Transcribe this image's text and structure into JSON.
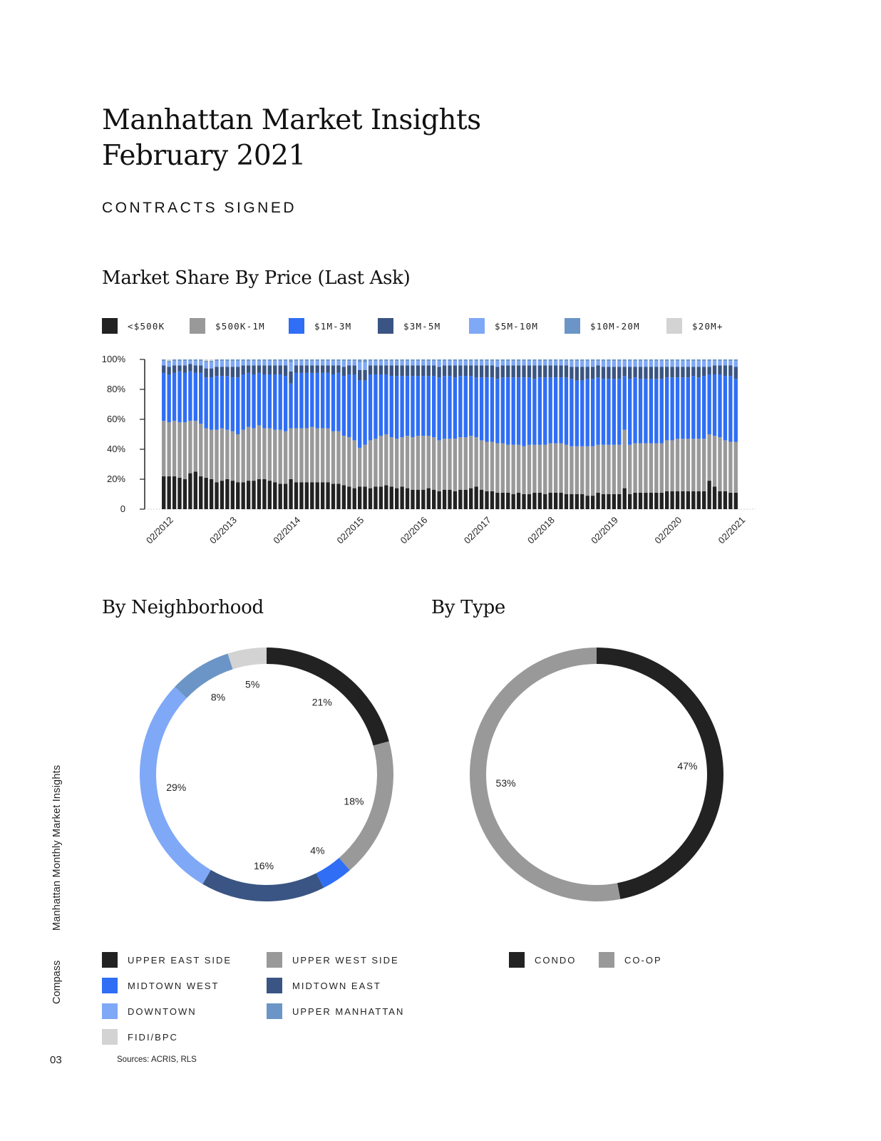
{
  "header": {
    "title_line1": "Manhattan Market Insights",
    "title_line2": "February 2021",
    "section": "CONTRACTS SIGNED"
  },
  "sidebar": {
    "publication": "Manhattan Monthly Market Insights",
    "brand": "Compass"
  },
  "footer": {
    "page_number": "03",
    "sources": "Sources: ACRIS, RLS"
  },
  "colors": {
    "under_500k": "#222222",
    "500k_1m": "#999999",
    "1m_3m": "#2f6ef5",
    "3m_5m": "#3a5583",
    "5m_10m": "#7fa8f7",
    "10m_20m": "#6b95c6",
    "20m_plus": "#d3d3d3"
  },
  "chart_data": [
    {
      "type": "bar",
      "stacked": true,
      "title": "Market Share By Price (Last Ask)",
      "y_unit": "percent",
      "ylim": [
        0,
        100
      ],
      "y_ticks": [
        "0",
        "20%",
        "40%",
        "60%",
        "80%",
        "100%"
      ],
      "x_tick_labels": [
        "02/2012",
        "02/2013",
        "02/2014",
        "02/2015",
        "02/2016",
        "02/2017",
        "02/2018",
        "02/2019",
        "02/2020",
        "02/2021"
      ],
      "n_months": 109,
      "legend": [
        "<$500K",
        "$500K-1M",
        "$1M-3M",
        "$3M-5M",
        "$5M-10M",
        "$10M-20M",
        "$20M+"
      ],
      "series": [
        {
          "name": "<$500K",
          "color": "#222222",
          "values": [
            22,
            22,
            22,
            21,
            20,
            24,
            25,
            22,
            21,
            20,
            18,
            19,
            20,
            19,
            18,
            18,
            19,
            19,
            20,
            20,
            19,
            18,
            17,
            17,
            20,
            18,
            18,
            18,
            18,
            18,
            18,
            18,
            17,
            17,
            16,
            15,
            14,
            15,
            15,
            14,
            15,
            15,
            16,
            15,
            14,
            15,
            14,
            13,
            13,
            13,
            14,
            13,
            12,
            13,
            13,
            12,
            13,
            13,
            14,
            15,
            13,
            12,
            12,
            11,
            11,
            11,
            10,
            11,
            10,
            10,
            11,
            11,
            10,
            11,
            11,
            11,
            10,
            10,
            10,
            10,
            9,
            9,
            11,
            10,
            10,
            10,
            10,
            14,
            10,
            11,
            11,
            11,
            11,
            11,
            11,
            12,
            12,
            12,
            12,
            12,
            12,
            12,
            12,
            19,
            15,
            12,
            12,
            11,
            11
          ]
        },
        {
          "name": "$500K-1M",
          "values": [
            37,
            36,
            37,
            37,
            38,
            35,
            34,
            35,
            33,
            33,
            35,
            35,
            33,
            33,
            32,
            35,
            36,
            35,
            36,
            34,
            35,
            35,
            36,
            35,
            34,
            36,
            36,
            36,
            37,
            36,
            36,
            36,
            35,
            35,
            33,
            33,
            32,
            26,
            28,
            32,
            32,
            34,
            34,
            33,
            33,
            33,
            35,
            35,
            36,
            36,
            35,
            35,
            34,
            34,
            34,
            35,
            35,
            35,
            35,
            33,
            33,
            33,
            33,
            33,
            33,
            32,
            33,
            32,
            32,
            33,
            32,
            32,
            33,
            33,
            33,
            33,
            33,
            32,
            32,
            32,
            33,
            33,
            32,
            33,
            33,
            33,
            33,
            39,
            33,
            33,
            33,
            33,
            33,
            33,
            33,
            34,
            34,
            35,
            35,
            35,
            35,
            35,
            35,
            31,
            34,
            36,
            34,
            34,
            34
          ]
        },
        {
          "name": "$1M-3M",
          "values": [
            32,
            32,
            32,
            34,
            33,
            33,
            32,
            34,
            34,
            35,
            36,
            35,
            36,
            36,
            38,
            37,
            36,
            36,
            35,
            36,
            36,
            37,
            37,
            37,
            30,
            37,
            37,
            37,
            36,
            37,
            37,
            37,
            38,
            39,
            40,
            42,
            44,
            45,
            43,
            44,
            43,
            41,
            40,
            41,
            42,
            41,
            40,
            41,
            40,
            40,
            40,
            41,
            42,
            42,
            42,
            41,
            41,
            41,
            40,
            40,
            42,
            43,
            43,
            43,
            44,
            45,
            45,
            45,
            46,
            45,
            44,
            45,
            45,
            44,
            44,
            44,
            45,
            45,
            44,
            44,
            45,
            45,
            45,
            44,
            44,
            44,
            44,
            36,
            44,
            44,
            43,
            43,
            43,
            43,
            43,
            42,
            42,
            41,
            41,
            41,
            42,
            41,
            42,
            40,
            41,
            42,
            43,
            44,
            42
          ]
        },
        {
          "name": "$3M-5M",
          "values": [
            5,
            5,
            5,
            4,
            5,
            5,
            5,
            5,
            6,
            6,
            6,
            6,
            6,
            7,
            7,
            6,
            5,
            6,
            5,
            6,
            6,
            6,
            6,
            7,
            8,
            5,
            5,
            5,
            5,
            5,
            5,
            5,
            6,
            5,
            6,
            6,
            6,
            7,
            7,
            6,
            6,
            6,
            6,
            7,
            7,
            7,
            7,
            7,
            7,
            7,
            7,
            7,
            7,
            7,
            7,
            8,
            7,
            7,
            7,
            8,
            8,
            8,
            8,
            8,
            8,
            8,
            8,
            8,
            8,
            8,
            9,
            8,
            8,
            8,
            8,
            8,
            8,
            8,
            9,
            9,
            8,
            8,
            8,
            8,
            8,
            8,
            8,
            6,
            8,
            7,
            8,
            8,
            8,
            8,
            8,
            7,
            7,
            7,
            7,
            7,
            6,
            7,
            6,
            5,
            6,
            6,
            7,
            7,
            8
          ]
        },
        {
          "name": "$5M-10M",
          "values": [
            3,
            3,
            3,
            3,
            3,
            2,
            3,
            3,
            4,
            4,
            4,
            4,
            4,
            4,
            4,
            3,
            3,
            3,
            3,
            3,
            3,
            3,
            3,
            3,
            6,
            3,
            3,
            3,
            3,
            3,
            3,
            3,
            3,
            3,
            4,
            3,
            3,
            5,
            5,
            3,
            3,
            3,
            3,
            3,
            3,
            3,
            3,
            3,
            3,
            3,
            3,
            3,
            4,
            3,
            3,
            3,
            3,
            3,
            3,
            3,
            3,
            3,
            3,
            4,
            3,
            3,
            3,
            3,
            3,
            3,
            3,
            3,
            3,
            3,
            3,
            3,
            3,
            4,
            4,
            4,
            4,
            4,
            3,
            4,
            4,
            4,
            4,
            4,
            4,
            4,
            4,
            4,
            4,
            4,
            4,
            4,
            4,
            4,
            4,
            4,
            4,
            4,
            4,
            4,
            3,
            3,
            3,
            3,
            4
          ]
        },
        {
          "name": "$10M-20M",
          "values": [
            1,
            1,
            1,
            1,
            1,
            1,
            1,
            1,
            1,
            1,
            1,
            1,
            1,
            1,
            1,
            1,
            1,
            1,
            1,
            1,
            1,
            1,
            1,
            1,
            2,
            1,
            1,
            1,
            1,
            1,
            1,
            1,
            1,
            1,
            1,
            1,
            1,
            2,
            2,
            1,
            1,
            1,
            1,
            1,
            1,
            1,
            1,
            1,
            1,
            1,
            1,
            1,
            1,
            1,
            1,
            1,
            1,
            1,
            1,
            1,
            1,
            1,
            1,
            1,
            1,
            1,
            1,
            1,
            1,
            1,
            1,
            1,
            1,
            1,
            1,
            1,
            1,
            1,
            1,
            1,
            1,
            1,
            1,
            1,
            1,
            1,
            1,
            1,
            1,
            1,
            1,
            1,
            1,
            1,
            1,
            1,
            1,
            1,
            1,
            1,
            1,
            1,
            1,
            1,
            1,
            1,
            1,
            1,
            1
          ]
        },
        {
          "name": "$20M+",
          "values": [
            0,
            1,
            0,
            0,
            0,
            0,
            0,
            0,
            1,
            1,
            0,
            0,
            0,
            0,
            0,
            0,
            0,
            0,
            0,
            0,
            0,
            0,
            0,
            0,
            0,
            0,
            0,
            0,
            0,
            0,
            0,
            0,
            0,
            0,
            0,
            0,
            0,
            0,
            0,
            0,
            0,
            0,
            0,
            0,
            0,
            0,
            0,
            0,
            0,
            0,
            0,
            0,
            0,
            0,
            0,
            0,
            0,
            0,
            0,
            0,
            0,
            0,
            0,
            0,
            0,
            0,
            0,
            0,
            0,
            0,
            0,
            0,
            0,
            0,
            0,
            0,
            0,
            0,
            0,
            0,
            0,
            0,
            0,
            0,
            0,
            0,
            0,
            0,
            0,
            0,
            0,
            0,
            0,
            0,
            0,
            0,
            0,
            0,
            0,
            0,
            0,
            0,
            0,
            0,
            0,
            0,
            0,
            0,
            0
          ]
        }
      ]
    },
    {
      "type": "pie",
      "donut": true,
      "title": "By Neighborhood",
      "slices": [
        {
          "name": "UPPER EAST SIDE",
          "value": 21,
          "label": "21%",
          "color": "#222222"
        },
        {
          "name": "UPPER WEST SIDE",
          "value": 18,
          "label": "18%",
          "color": "#999999"
        },
        {
          "name": "MIDTOWN WEST",
          "value": 4,
          "label": "4%",
          "color": "#2f6ef5"
        },
        {
          "name": "MIDTOWN EAST",
          "value": 16,
          "label": "16%",
          "color": "#3a5583"
        },
        {
          "name": "DOWNTOWN",
          "value": 29,
          "label": "29%",
          "color": "#7fa8f7"
        },
        {
          "name": "UPPER MANHATTAN",
          "value": 8,
          "label": "8%",
          "color": "#6b95c6"
        },
        {
          "name": "FIDI/BPC",
          "value": 5,
          "label": "5%",
          "color": "#d3d3d3"
        }
      ]
    },
    {
      "type": "pie",
      "donut": true,
      "title": "By Type",
      "slices": [
        {
          "name": "CONDO",
          "value": 47,
          "label": "47%",
          "color": "#222222"
        },
        {
          "name": "CO-OP",
          "value": 53,
          "label": "53%",
          "color": "#999999"
        }
      ]
    }
  ]
}
